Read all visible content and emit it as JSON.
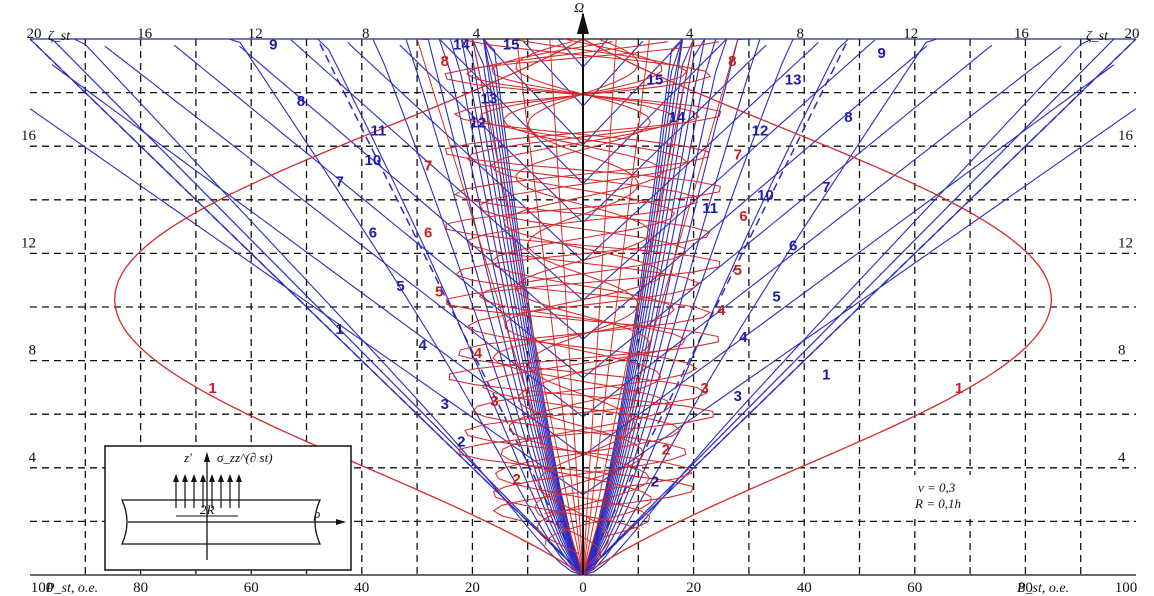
{
  "chart_data": {
    "type": "line",
    "top_axis": {
      "left_label": "ζ_st",
      "right_label": "ζ_st",
      "center_label": "Ω",
      "left_ticks": [
        "20",
        "16",
        "12",
        "8",
        "4"
      ],
      "right_ticks": [
        "4",
        "8",
        "12",
        "16",
        "20"
      ]
    },
    "bottom_axis": {
      "left_label": "P_st, o.e.",
      "right_label": "P_st, o.e.",
      "left_ticks": [
        "100",
        "80",
        "60",
        "40",
        "20",
        "0"
      ],
      "right_ticks": [
        "20",
        "40",
        "60",
        "80",
        "100"
      ],
      "xlim": [
        -100,
        100
      ]
    },
    "y_axis": {
      "ticks": [
        "4",
        "8",
        "12",
        "16",
        "20"
      ],
      "ylim": [
        0,
        20
      ]
    },
    "grid": true,
    "params": {
      "nu": "ν = 0,3",
      "R": "R = 0,1h"
    },
    "blue_labels": [
      {
        "text": "1",
        "x": -44,
        "y": 9.0
      },
      {
        "text": "2",
        "x": -22,
        "y": 4.8
      },
      {
        "text": "3",
        "x": -25,
        "y": 6.2
      },
      {
        "text": "4",
        "x": -29,
        "y": 8.4
      },
      {
        "text": "5",
        "x": -33,
        "y": 10.6
      },
      {
        "text": "6",
        "x": -38,
        "y": 12.6
      },
      {
        "text": "7",
        "x": -44,
        "y": 14.5
      },
      {
        "text": "8",
        "x": -51,
        "y": 17.5
      },
      {
        "text": "9",
        "x": -56,
        "y": 19.6
      },
      {
        "text": "10",
        "x": -38,
        "y": 15.3
      },
      {
        "text": "11",
        "x": -37,
        "y": 16.4
      },
      {
        "text": "12",
        "x": -19,
        "y": 16.7
      },
      {
        "text": "13",
        "x": -17,
        "y": 17.6
      },
      {
        "text": "14",
        "x": -22,
        "y": 19.6
      },
      {
        "text": "15",
        "x": -13,
        "y": 19.6
      },
      {
        "text": "1",
        "x": 44,
        "y": 7.3
      },
      {
        "text": "2",
        "x": 13,
        "y": 3.3
      },
      {
        "text": "3",
        "x": 28,
        "y": 6.5
      },
      {
        "text": "4",
        "x": 29,
        "y": 8.7
      },
      {
        "text": "5",
        "x": 35,
        "y": 10.2
      },
      {
        "text": "6",
        "x": 38,
        "y": 12.1
      },
      {
        "text": "7",
        "x": 44,
        "y": 14.3
      },
      {
        "text": "8",
        "x": 48,
        "y": 16.9
      },
      {
        "text": "9",
        "x": 54,
        "y": 19.3
      },
      {
        "text": "10",
        "x": 33,
        "y": 14.0
      },
      {
        "text": "11",
        "x": 23,
        "y": 13.5
      },
      {
        "text": "12",
        "x": 32,
        "y": 16.4
      },
      {
        "text": "13",
        "x": 38,
        "y": 18.3
      },
      {
        "text": "14",
        "x": 17,
        "y": 16.9
      },
      {
        "text": "15",
        "x": 13,
        "y": 18.3
      }
    ],
    "red_labels": [
      {
        "text": "1",
        "x": -67,
        "y": 6.8
      },
      {
        "text": "2",
        "x": -12,
        "y": 3.4
      },
      {
        "text": "3",
        "x": -16,
        "y": 6.3
      },
      {
        "text": "4",
        "x": -19,
        "y": 8.1
      },
      {
        "text": "5",
        "x": -26,
        "y": 10.4
      },
      {
        "text": "6",
        "x": -28,
        "y": 12.6
      },
      {
        "text": "7",
        "x": -28,
        "y": 15.1
      },
      {
        "text": "8",
        "x": -25,
        "y": 19.0
      },
      {
        "text": "1",
        "x": 68,
        "y": 6.8
      },
      {
        "text": "2",
        "x": 15,
        "y": 4.5
      },
      {
        "text": "3",
        "x": 22,
        "y": 6.8
      },
      {
        "text": "4",
        "x": 25,
        "y": 9.7
      },
      {
        "text": "5",
        "x": 28,
        "y": 11.2
      },
      {
        "text": "6",
        "x": 29,
        "y": 13.2
      },
      {
        "text": "7",
        "x": 28,
        "y": 15.5
      },
      {
        "text": "8",
        "x": 27,
        "y": 19.0
      }
    ],
    "inset": {
      "z_label": "z'",
      "sigma_label": "σ_zz^(∂ st)",
      "width_label": "2R",
      "rho_label": "ρ"
    }
  }
}
